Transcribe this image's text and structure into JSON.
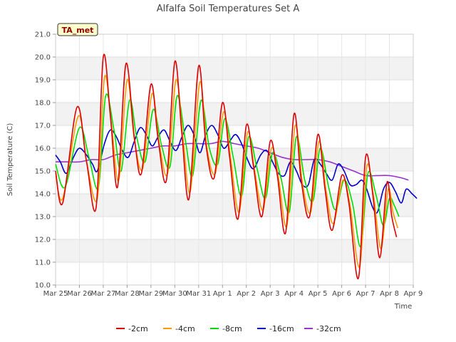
{
  "chart_data": {
    "type": "line",
    "title": "Alfalfa Soil Temperatures Set A",
    "xlabel": "Time",
    "ylabel": "Soil Temperature (C)",
    "badge": "TA_met",
    "xlim": [
      0,
      15
    ],
    "ylim": [
      10.0,
      21.0
    ],
    "yticks": [
      "10.0",
      "11.0",
      "12.0",
      "13.0",
      "14.0",
      "15.0",
      "16.0",
      "17.0",
      "18.0",
      "19.0",
      "20.0",
      "21.0"
    ],
    "xtick_labels": [
      "Mar 25",
      "Mar 26",
      "Mar 27",
      "Mar 28",
      "Mar 29",
      "Mar 30",
      "Mar 31",
      "Apr 1",
      "Apr 2",
      "Apr 3",
      "Apr 4",
      "Apr 5",
      "Apr 6",
      "Apr 7",
      "Apr 8",
      "Apr 9"
    ],
    "grid": true,
    "legend_position": "bottom",
    "series": [
      {
        "name": "-2cm",
        "color": "#dd0000",
        "points": [
          [
            0.0,
            15.0
          ],
          [
            0.3,
            13.6
          ],
          [
            0.9,
            17.8
          ],
          [
            1.3,
            15.4
          ],
          [
            1.7,
            13.4
          ],
          [
            2.0,
            20.0
          ],
          [
            2.3,
            17.4
          ],
          [
            2.6,
            14.3
          ],
          [
            2.95,
            19.7
          ],
          [
            3.3,
            16.5
          ],
          [
            3.6,
            14.9
          ],
          [
            4.0,
            18.8
          ],
          [
            4.3,
            16.4
          ],
          [
            4.65,
            14.6
          ],
          [
            5.0,
            19.8
          ],
          [
            5.3,
            16.6
          ],
          [
            5.6,
            13.8
          ],
          [
            6.0,
            19.6
          ],
          [
            6.3,
            16.2
          ],
          [
            6.65,
            14.7
          ],
          [
            7.0,
            18.0
          ],
          [
            7.3,
            15.6
          ],
          [
            7.65,
            12.9
          ],
          [
            8.0,
            17.0
          ],
          [
            8.3,
            15.2
          ],
          [
            8.65,
            13.0
          ],
          [
            9.0,
            16.3
          ],
          [
            9.3,
            14.8
          ],
          [
            9.65,
            12.3
          ],
          [
            10.0,
            17.5
          ],
          [
            10.3,
            14.6
          ],
          [
            10.65,
            13.0
          ],
          [
            11.0,
            16.6
          ],
          [
            11.3,
            14.2
          ],
          [
            11.6,
            12.4
          ],
          [
            12.0,
            14.8
          ],
          [
            12.3,
            13.6
          ],
          [
            12.7,
            10.3
          ],
          [
            13.0,
            15.6
          ],
          [
            13.3,
            14.0
          ],
          [
            13.6,
            11.2
          ],
          [
            13.9,
            14.5
          ],
          [
            14.1,
            13.0
          ],
          [
            14.3,
            12.1
          ]
        ]
      },
      {
        "name": "-4cm",
        "color": "#ff9900",
        "points": [
          [
            0.0,
            14.9
          ],
          [
            0.3,
            13.8
          ],
          [
            0.95,
            17.4
          ],
          [
            1.3,
            15.4
          ],
          [
            1.75,
            13.8
          ],
          [
            2.05,
            19.1
          ],
          [
            2.35,
            17.0
          ],
          [
            2.65,
            14.6
          ],
          [
            3.0,
            19.0
          ],
          [
            3.3,
            16.4
          ],
          [
            3.65,
            15.1
          ],
          [
            4.05,
            18.4
          ],
          [
            4.35,
            16.2
          ],
          [
            4.7,
            14.9
          ],
          [
            5.05,
            19.0
          ],
          [
            5.35,
            16.4
          ],
          [
            5.65,
            14.1
          ],
          [
            6.05,
            18.9
          ],
          [
            6.35,
            16.0
          ],
          [
            6.7,
            14.9
          ],
          [
            7.05,
            17.6
          ],
          [
            7.35,
            15.5
          ],
          [
            7.7,
            13.2
          ],
          [
            8.05,
            16.7
          ],
          [
            8.35,
            15.0
          ],
          [
            8.7,
            13.3
          ],
          [
            9.05,
            16.0
          ],
          [
            9.35,
            14.7
          ],
          [
            9.7,
            12.6
          ],
          [
            10.05,
            17.0
          ],
          [
            10.35,
            14.5
          ],
          [
            10.7,
            13.2
          ],
          [
            11.05,
            16.3
          ],
          [
            11.35,
            14.1
          ],
          [
            11.65,
            12.7
          ],
          [
            12.05,
            14.6
          ],
          [
            12.35,
            13.5
          ],
          [
            12.75,
            10.8
          ],
          [
            13.05,
            15.2
          ],
          [
            13.35,
            13.8
          ],
          [
            13.65,
            11.6
          ],
          [
            13.95,
            14.2
          ],
          [
            14.15,
            13.2
          ],
          [
            14.35,
            12.5
          ]
        ]
      },
      {
        "name": "-8cm",
        "color": "#00dd00",
        "points": [
          [
            0.0,
            15.3
          ],
          [
            0.4,
            14.3
          ],
          [
            1.0,
            16.9
          ],
          [
            1.4,
            15.6
          ],
          [
            1.8,
            14.3
          ],
          [
            2.1,
            18.3
          ],
          [
            2.45,
            16.8
          ],
          [
            2.75,
            15.0
          ],
          [
            3.1,
            18.1
          ],
          [
            3.4,
            16.5
          ],
          [
            3.75,
            15.4
          ],
          [
            4.1,
            17.7
          ],
          [
            4.45,
            16.1
          ],
          [
            4.8,
            15.2
          ],
          [
            5.1,
            18.3
          ],
          [
            5.45,
            16.3
          ],
          [
            5.75,
            14.8
          ],
          [
            6.1,
            18.1
          ],
          [
            6.45,
            16.0
          ],
          [
            6.8,
            15.3
          ],
          [
            7.1,
            17.3
          ],
          [
            7.45,
            15.6
          ],
          [
            7.8,
            13.9
          ],
          [
            8.1,
            16.5
          ],
          [
            8.45,
            15.1
          ],
          [
            8.8,
            13.8
          ],
          [
            9.1,
            15.8
          ],
          [
            9.45,
            14.7
          ],
          [
            9.8,
            13.2
          ],
          [
            10.1,
            16.5
          ],
          [
            10.45,
            14.6
          ],
          [
            10.8,
            13.7
          ],
          [
            11.1,
            16.0
          ],
          [
            11.45,
            14.3
          ],
          [
            11.75,
            13.3
          ],
          [
            12.1,
            14.6
          ],
          [
            12.45,
            13.6
          ],
          [
            12.8,
            11.7
          ],
          [
            13.1,
            14.9
          ],
          [
            13.45,
            13.9
          ],
          [
            13.75,
            12.6
          ],
          [
            14.0,
            13.8
          ],
          [
            14.2,
            13.5
          ],
          [
            14.4,
            13.0
          ]
        ]
      },
      {
        "name": "-16cm",
        "color": "#0000cc",
        "points": [
          [
            0.0,
            15.7
          ],
          [
            0.2,
            15.4
          ],
          [
            0.45,
            14.9
          ],
          [
            0.75,
            15.6
          ],
          [
            1.0,
            16.0
          ],
          [
            1.3,
            15.7
          ],
          [
            1.55,
            15.3
          ],
          [
            1.75,
            15.0
          ],
          [
            2.05,
            16.2
          ],
          [
            2.3,
            16.8
          ],
          [
            2.55,
            16.5
          ],
          [
            2.8,
            15.9
          ],
          [
            3.05,
            15.6
          ],
          [
            3.3,
            16.3
          ],
          [
            3.55,
            16.9
          ],
          [
            3.8,
            16.6
          ],
          [
            4.05,
            16.1
          ],
          [
            4.3,
            16.5
          ],
          [
            4.55,
            16.8
          ],
          [
            4.8,
            16.3
          ],
          [
            5.05,
            15.9
          ],
          [
            5.3,
            16.5
          ],
          [
            5.55,
            17.0
          ],
          [
            5.8,
            16.6
          ],
          [
            6.05,
            15.8
          ],
          [
            6.3,
            16.6
          ],
          [
            6.55,
            17.0
          ],
          [
            6.8,
            16.6
          ],
          [
            7.05,
            16.0
          ],
          [
            7.3,
            16.3
          ],
          [
            7.55,
            16.6
          ],
          [
            7.8,
            16.2
          ],
          [
            8.05,
            15.5
          ],
          [
            8.3,
            15.1
          ],
          [
            8.6,
            15.7
          ],
          [
            8.85,
            15.9
          ],
          [
            9.1,
            15.4
          ],
          [
            9.35,
            14.9
          ],
          [
            9.6,
            14.8
          ],
          [
            9.85,
            15.4
          ],
          [
            10.1,
            15.0
          ],
          [
            10.35,
            14.4
          ],
          [
            10.6,
            14.4
          ],
          [
            10.85,
            15.5
          ],
          [
            11.1,
            15.3
          ],
          [
            11.35,
            14.9
          ],
          [
            11.6,
            14.6
          ],
          [
            11.85,
            15.3
          ],
          [
            12.1,
            15.0
          ],
          [
            12.35,
            14.4
          ],
          [
            12.6,
            14.4
          ],
          [
            12.85,
            14.6
          ],
          [
            13.05,
            14.2
          ],
          [
            13.3,
            13.4
          ],
          [
            13.5,
            13.2
          ],
          [
            13.75,
            14.2
          ],
          [
            14.0,
            14.5
          ],
          [
            14.25,
            14.1
          ],
          [
            14.5,
            13.6
          ],
          [
            14.7,
            14.2
          ],
          [
            14.95,
            14.0
          ],
          [
            15.15,
            13.8
          ]
        ]
      },
      {
        "name": "-32cm",
        "color": "#9933cc",
        "points": [
          [
            0.0,
            15.4
          ],
          [
            0.5,
            15.4
          ],
          [
            1.0,
            15.4
          ],
          [
            1.5,
            15.5
          ],
          [
            2.0,
            15.5
          ],
          [
            2.5,
            15.7
          ],
          [
            3.0,
            15.8
          ],
          [
            3.5,
            15.9
          ],
          [
            4.0,
            16.0
          ],
          [
            4.5,
            16.1
          ],
          [
            5.0,
            16.1
          ],
          [
            5.5,
            16.2
          ],
          [
            6.0,
            16.2
          ],
          [
            6.5,
            16.2
          ],
          [
            7.0,
            16.3
          ],
          [
            7.5,
            16.2
          ],
          [
            8.0,
            16.1
          ],
          [
            8.5,
            16.0
          ],
          [
            9.0,
            15.8
          ],
          [
            9.5,
            15.6
          ],
          [
            10.0,
            15.5
          ],
          [
            10.5,
            15.5
          ],
          [
            11.0,
            15.5
          ],
          [
            11.5,
            15.4
          ],
          [
            12.0,
            15.2
          ],
          [
            12.5,
            15.0
          ],
          [
            13.0,
            14.8
          ],
          [
            13.5,
            14.8
          ],
          [
            14.0,
            14.8
          ],
          [
            14.5,
            14.7
          ],
          [
            14.8,
            14.6
          ]
        ]
      }
    ]
  }
}
